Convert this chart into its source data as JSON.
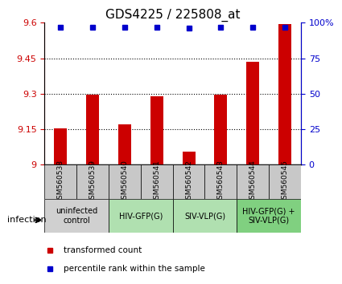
{
  "title": "GDS4225 / 225808_at",
  "samples": [
    "GSM560538",
    "GSM560539",
    "GSM560540",
    "GSM560541",
    "GSM560542",
    "GSM560543",
    "GSM560544",
    "GSM560545"
  ],
  "bar_values": [
    9.155,
    9.295,
    9.17,
    9.29,
    9.055,
    9.295,
    9.435,
    9.595
  ],
  "percentile_values": [
    97,
    97,
    97,
    97,
    96,
    97,
    97,
    97
  ],
  "ylim_left": [
    9.0,
    9.6
  ],
  "ylim_right": [
    0,
    100
  ],
  "yticks_left": [
    9.0,
    9.15,
    9.3,
    9.45,
    9.6
  ],
  "yticks_right": [
    0,
    25,
    50,
    75,
    100
  ],
  "ytick_left_labels": [
    "9",
    "9.15",
    "9.3",
    "9.45",
    "9.6"
  ],
  "ytick_right_labels": [
    "0",
    "25",
    "50",
    "75",
    "100%"
  ],
  "bar_color": "#cc0000",
  "dot_color": "#0000cc",
  "baseline": 9.0,
  "groups": [
    {
      "label": "uninfected\ncontrol",
      "start": 0,
      "end": 2,
      "color": "#d0d0d0"
    },
    {
      "label": "HIV-GFP(G)",
      "start": 2,
      "end": 4,
      "color": "#b0e0b0"
    },
    {
      "label": "SIV-VLP(G)",
      "start": 4,
      "end": 6,
      "color": "#b0e0b0"
    },
    {
      "label": "HIV-GFP(G) +\nSIV-VLP(G)",
      "start": 6,
      "end": 8,
      "color": "#80d080"
    }
  ],
  "legend_items": [
    {
      "label": "transformed count",
      "color": "#cc0000"
    },
    {
      "label": "percentile rank within the sample",
      "color": "#0000cc"
    }
  ],
  "infection_label": "infection",
  "left_axis_color": "#cc0000",
  "right_axis_color": "#0000cc",
  "grid_color": "#000000",
  "sample_box_color": "#c8c8c8",
  "grid_yticks": [
    9.15,
    9.3,
    9.45
  ]
}
